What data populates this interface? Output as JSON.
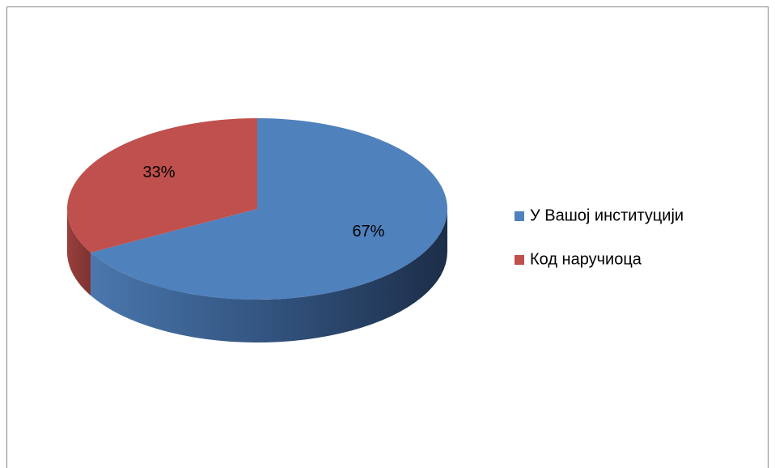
{
  "chart_data": {
    "type": "pie",
    "categories": [
      "У Вашој институцији",
      "Код наручиоца"
    ],
    "values": [
      67,
      33
    ],
    "value_labels": [
      "67%",
      "33%"
    ],
    "colors": [
      "#4f81bd",
      "#c0504d"
    ],
    "legend": "right"
  }
}
